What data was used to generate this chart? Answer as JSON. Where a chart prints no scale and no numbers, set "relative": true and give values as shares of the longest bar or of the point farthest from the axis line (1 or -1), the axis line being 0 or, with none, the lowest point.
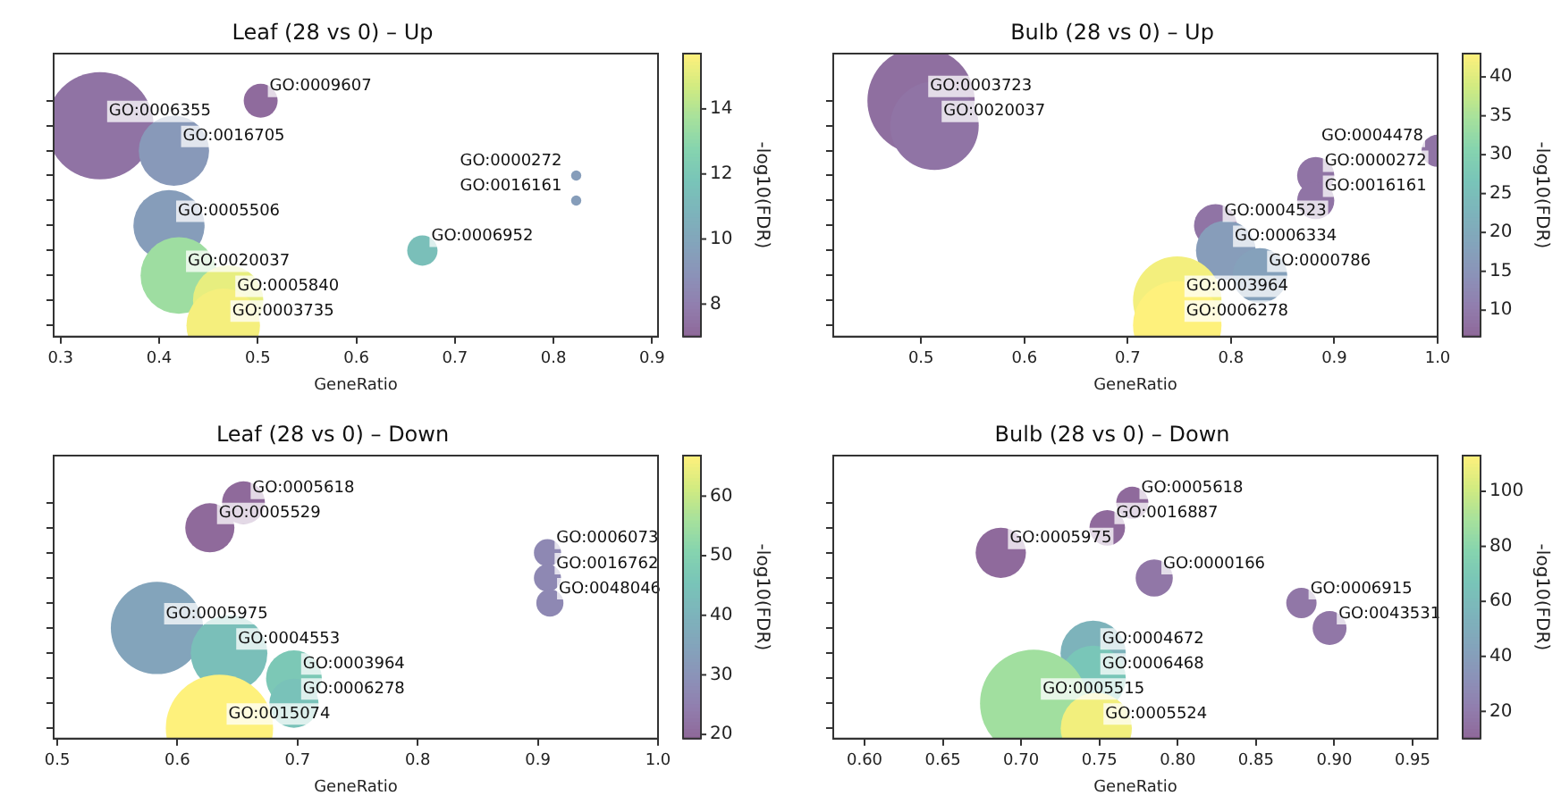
{
  "chart_data": [
    {
      "type": "bubble",
      "title": "Leaf (28 vs 0) – Up",
      "xlabel": "GeneRatio",
      "clabel": "-log10(FDR)",
      "tick_labels": "x",
      "relative": true,
      "x": [
        0.465,
        0.47,
        0.42,
        0.667,
        0.41,
        0.823,
        0.823,
        0.415,
        0.34,
        0.503
      ],
      "values": [
        0.048,
        0.153,
        0.259,
        0.365,
        0.471,
        0.577,
        0.683,
        0.788,
        0.894,
        1
      ],
      "sizes": [
        0.47,
        0.43,
        0.51,
        0.08,
        0.44,
        0.009,
        0.009,
        0.43,
        1,
        0.1
      ],
      "cvalues": [
        15.5,
        15.2,
        13.5,
        11.5,
        9.5,
        9.5,
        9.5,
        9.3,
        7.5,
        7.2
      ],
      "xlim": [
        0.293,
        0.906
      ],
      "xticks": [
        0.3,
        0.4,
        0.5,
        0.6,
        0.7,
        0.8,
        0.9
      ],
      "clim": [
        7,
        15.7
      ],
      "cticks": [
        8,
        10,
        12,
        14
      ],
      "annotations": [
        {
          "text": "GO:0003735",
          "x": 0.465,
          "y": 0.048
        },
        {
          "text": "GO:0005840",
          "x": 0.47,
          "y": 0.153
        },
        {
          "text": "GO:0020037",
          "x": 0.42,
          "y": 0.259
        },
        {
          "text": "GO:0006952",
          "x": 0.667,
          "y": 0.365
        },
        {
          "text": "GO:0005506",
          "x": 0.41,
          "y": 0.471
        },
        {
          "text": "GO:0016161",
          "x": 0.823,
          "y": 0.577
        },
        {
          "text": "GO:0000272",
          "x": 0.823,
          "y": 0.683
        },
        {
          "text": "GO:0016705",
          "x": 0.415,
          "y": 0.788
        },
        {
          "text": "GO:0006355",
          "x": 0.34,
          "y": 0.894
        },
        {
          "text": "GO:0009607",
          "x": 0.503,
          "y": 1
        }
      ]
    },
    {
      "type": "bubble",
      "title": "Bulb (28 vs 0) – Up",
      "xlabel": "GeneRatio",
      "clabel": "-log10(FDR)",
      "tick_labels": "x",
      "relative": true,
      "x": [
        0.748,
        0.748,
        0.828,
        0.795,
        0.785,
        0.882,
        0.882,
        1.0,
        0.513,
        0.5
      ],
      "values": [
        0.048,
        0.153,
        0.259,
        0.365,
        0.471,
        0.577,
        0.683,
        0.788,
        0.894,
        1
      ],
      "sizes": [
        0.68,
        0.68,
        0.26,
        0.31,
        0.16,
        0.12,
        0.12,
        0.09,
        0.68,
        1
      ],
      "cvalues": [
        43,
        42,
        18,
        17,
        9,
        9,
        9,
        9,
        9,
        8
      ],
      "xlim": [
        0.415,
        1.0
      ],
      "xticks": [
        0.5,
        0.6,
        0.7,
        0.8,
        0.9,
        {
          "value": 1,
          "label": "1.0"
        }
      ],
      "clim": [
        6.6,
        43
      ],
      "cticks": [
        10,
        15,
        20,
        25,
        30,
        35,
        40
      ],
      "annotations": [
        {
          "text": "GO:0006278",
          "x": 0.748,
          "y": 0.048
        },
        {
          "text": "GO:0003964",
          "x": 0.748,
          "y": 0.153
        },
        {
          "text": "GO:0000786",
          "x": 0.828,
          "y": 0.259
        },
        {
          "text": "GO:0006334",
          "x": 0.795,
          "y": 0.365
        },
        {
          "text": "GO:0004523",
          "x": 0.785,
          "y": 0.471
        },
        {
          "text": "GO:0016161",
          "x": 0.882,
          "y": 0.577
        },
        {
          "text": "GO:0000272",
          "x": 0.882,
          "y": 0.683
        },
        {
          "text": "GO:0004478",
          "x": 1.0,
          "y": 0.788
        },
        {
          "text": "GO:0020037",
          "x": 0.513,
          "y": 0.894
        },
        {
          "text": "GO:0003723",
          "x": 0.5,
          "y": 1
        }
      ]
    },
    {
      "type": "bubble",
      "title": "Leaf (28 vs 0) – Down",
      "xlabel": "GeneRatio",
      "clabel": "-log10(FDR)",
      "tick_labels": "x",
      "relative": true,
      "x": [
        0.635,
        0.697,
        0.697,
        0.643,
        0.583,
        0.91,
        0.908,
        0.908,
        0.627,
        0.655
      ],
      "values": [
        0.044,
        0.15,
        0.256,
        0.362,
        0.469,
        0.575,
        0.681,
        0.788,
        0.894,
        1
      ],
      "sizes": [
        1,
        0.21,
        0.27,
        0.51,
        0.74,
        0.064,
        0.064,
        0.064,
        0.21,
        0.16
      ],
      "cvalues": [
        67,
        45,
        47,
        44,
        35,
        27,
        27,
        27,
        20,
        20
      ],
      "xlim": [
        0.497,
        1.0
      ],
      "xticks": [
        0.5,
        0.6,
        0.7,
        0.8,
        0.9,
        {
          "value": 1,
          "label": "1.0"
        }
      ],
      "clim": [
        19.3,
        66.8
      ],
      "cticks": [
        20,
        30,
        40,
        50,
        60
      ],
      "annotations": [
        {
          "text": "GO:0015074",
          "x": 0.635,
          "y": 0.044
        },
        {
          "text": "GO:0006278",
          "x": 0.697,
          "y": 0.15
        },
        {
          "text": "GO:0003964",
          "x": 0.697,
          "y": 0.256
        },
        {
          "text": "GO:0004553",
          "x": 0.643,
          "y": 0.362
        },
        {
          "text": "GO:0005975",
          "x": 0.583,
          "y": 0.469
        },
        {
          "text": "GO:0048046",
          "x": 0.91,
          "y": 0.575
        },
        {
          "text": "GO:0016762",
          "x": 0.908,
          "y": 0.681
        },
        {
          "text": "GO:0006073",
          "x": 0.908,
          "y": 0.788
        },
        {
          "text": "GO:0005529",
          "x": 0.627,
          "y": 0.894
        },
        {
          "text": "GO:0005618",
          "x": 0.655,
          "y": 1
        }
      ]
    },
    {
      "type": "bubble",
      "title": "Bulb (28 vs 0) – Down",
      "xlabel": "GeneRatio",
      "clabel": "-log10(FDR)",
      "tick_labels": "x",
      "relative": true,
      "x": [
        0.748,
        0.708,
        0.746,
        0.746,
        0.897,
        0.879,
        0.785,
        0.687,
        0.755,
        0.771
      ],
      "values": [
        0.044,
        0.15,
        0.256,
        0.362,
        0.469,
        0.575,
        0.681,
        0.788,
        0.894,
        1
      ],
      "sizes": [
        0.44,
        1,
        0.37,
        0.37,
        0.1,
        0.08,
        0.12,
        0.22,
        0.11,
        0.09
      ],
      "cvalues": [
        110,
        88,
        68,
        55,
        18,
        18,
        18,
        12,
        12,
        12
      ],
      "xlim": [
        0.58,
        0.966
      ],
      "xticks": [
        {
          "value": 0.6,
          "label": "0.60"
        },
        0.65,
        {
          "value": 0.7,
          "label": "0.70"
        },
        0.75,
        {
          "value": 0.8,
          "label": "0.80"
        },
        0.85,
        {
          "value": 0.9,
          "label": "0.90"
        },
        0.95
      ],
      "clim": [
        10.1,
        113
      ],
      "cticks": [
        20,
        40,
        60,
        80,
        100
      ],
      "annotations": [
        {
          "text": "GO:0005524",
          "x": 0.748,
          "y": 0.044
        },
        {
          "text": "GO:0005515",
          "x": 0.708,
          "y": 0.15
        },
        {
          "text": "GO:0006468",
          "x": 0.746,
          "y": 0.256
        },
        {
          "text": "GO:0004672",
          "x": 0.746,
          "y": 0.362
        },
        {
          "text": "GO:0043531",
          "x": 0.897,
          "y": 0.469
        },
        {
          "text": "GO:0006915",
          "x": 0.879,
          "y": 0.575
        },
        {
          "text": "GO:0000166",
          "x": 0.785,
          "y": 0.681
        },
        {
          "text": "GO:0005975",
          "x": 0.687,
          "y": 0.788
        },
        {
          "text": "GO:0016887",
          "x": 0.755,
          "y": 0.894
        },
        {
          "text": "GO:0005618",
          "x": 0.771,
          "y": 1
        }
      ]
    }
  ]
}
